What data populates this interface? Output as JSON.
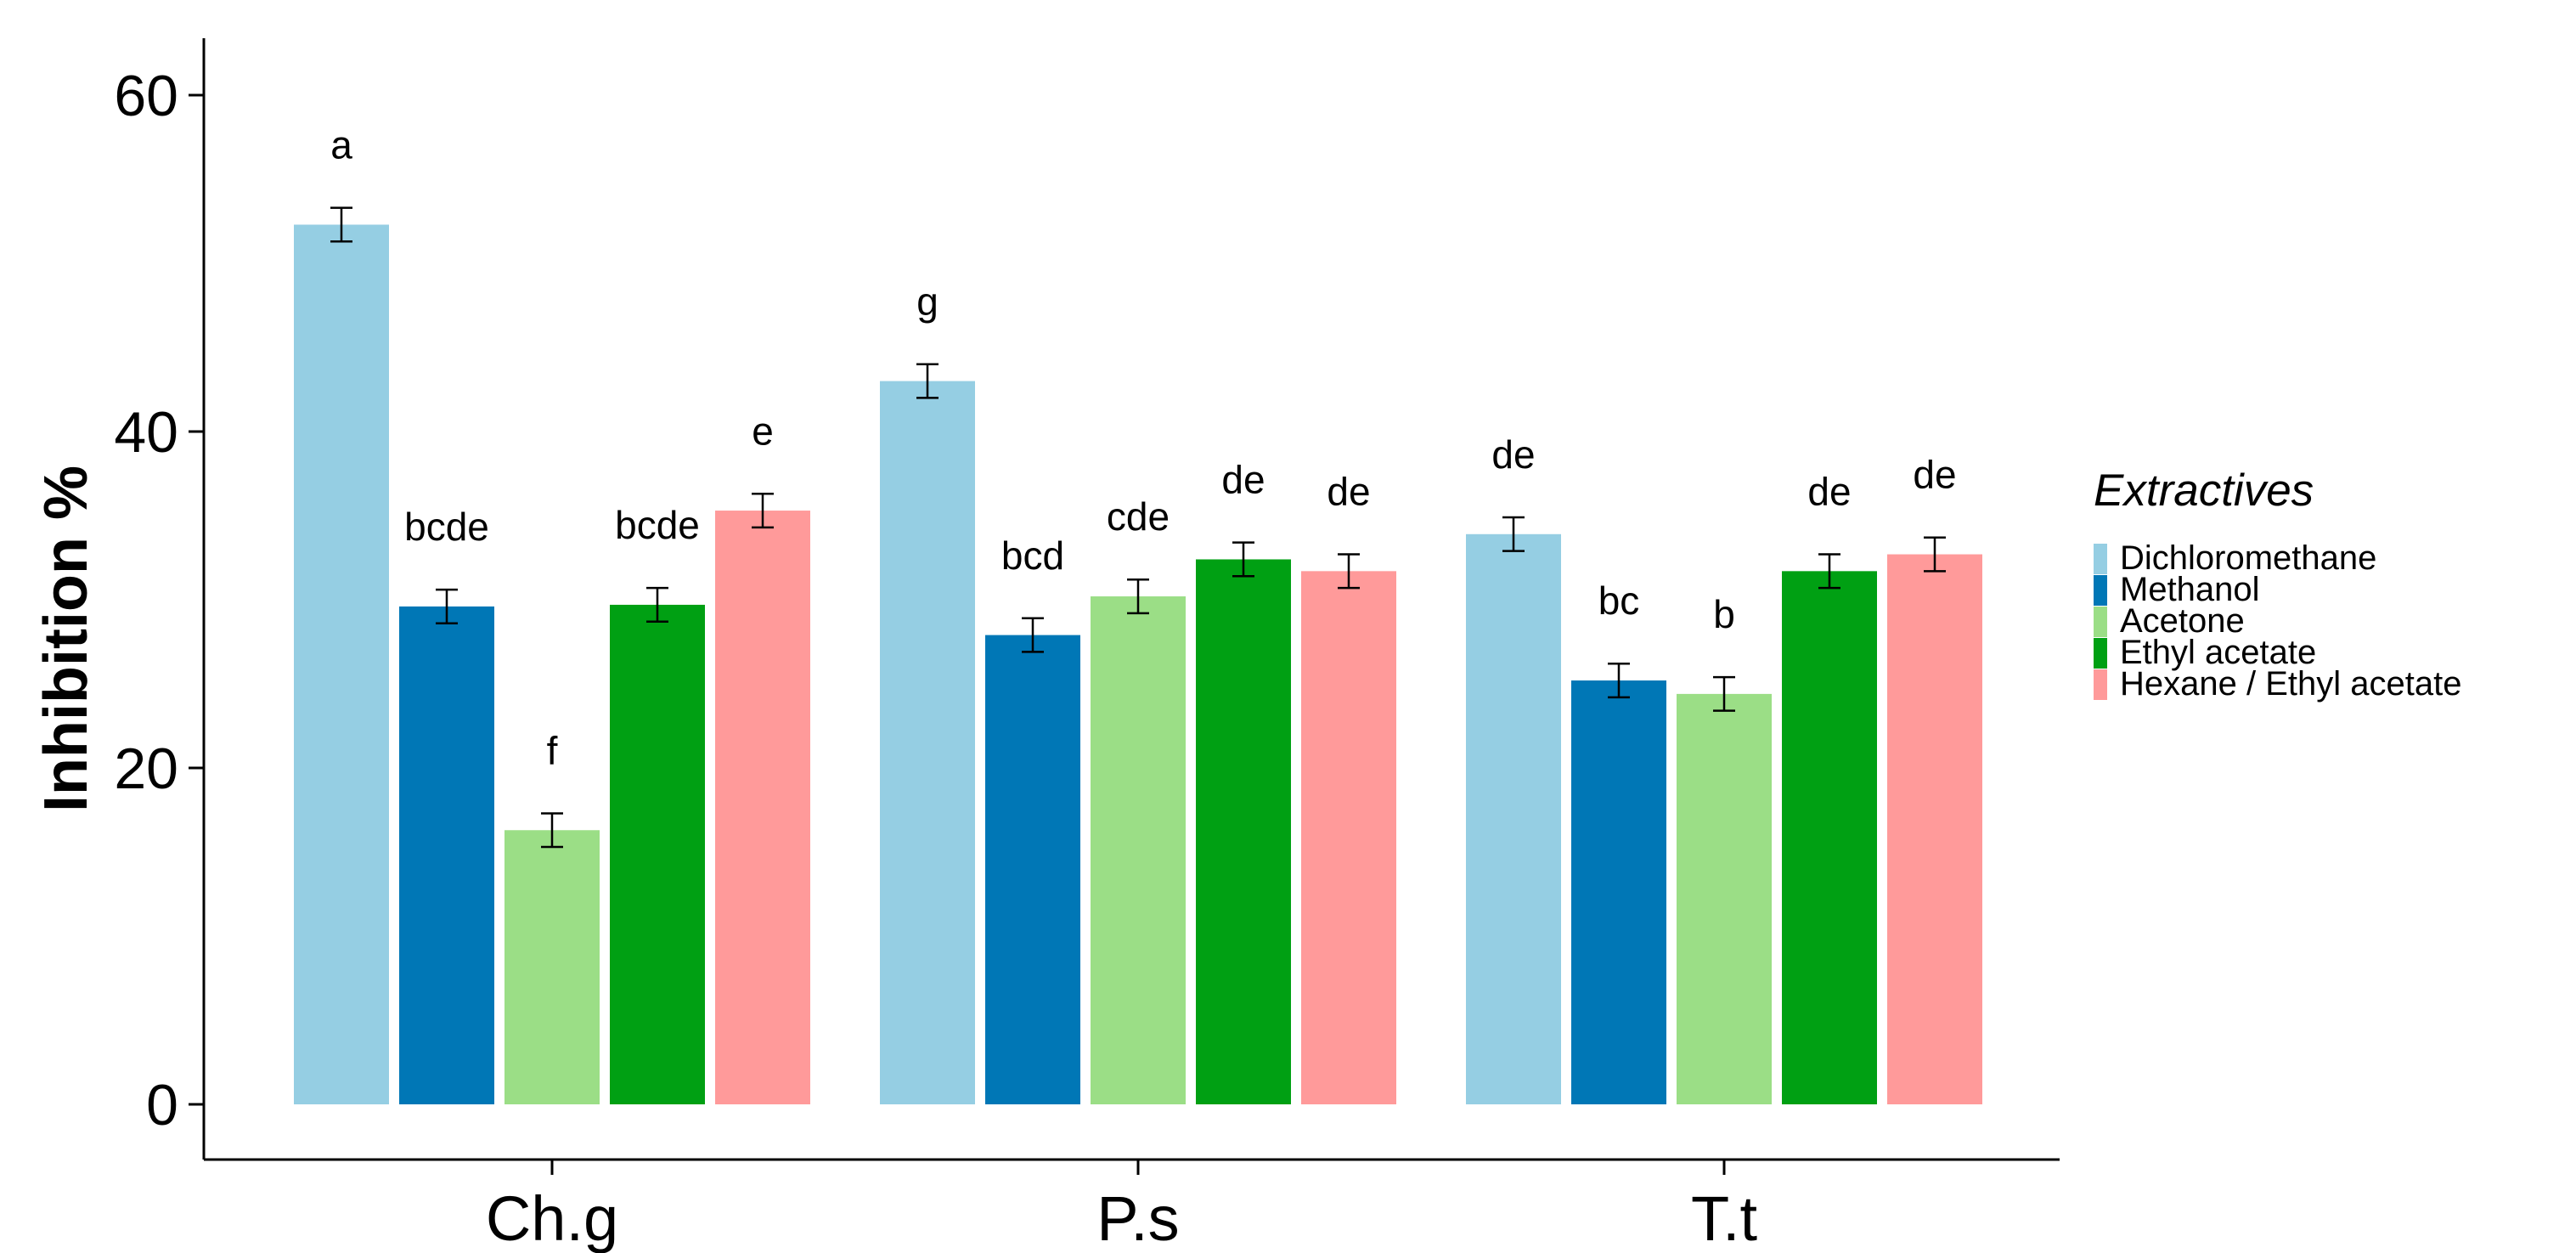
{
  "chart_data": {
    "type": "bar",
    "title": "",
    "xlabel": "",
    "ylabel": "Inhibition %",
    "ylim": [
      -3,
      63
    ],
    "yticks": [
      0,
      20,
      40,
      60
    ],
    "grid": false,
    "categories": [
      "Ch.g",
      "P.s",
      "T.t"
    ],
    "legend": {
      "title": "Extractives",
      "position": "right"
    },
    "series": [
      {
        "name": "Dichloromethane",
        "color": "#95CEE3",
        "values": [
          52.3,
          43.0,
          33.9
        ],
        "errors": [
          1.0,
          1.0,
          1.0
        ],
        "labels": [
          "a",
          "g",
          "de"
        ]
      },
      {
        "name": "Methanol",
        "color": "#0077B6",
        "values": [
          29.6,
          27.9,
          25.2
        ],
        "errors": [
          1.0,
          1.0,
          1.0
        ],
        "labels": [
          "bcde",
          "bcd",
          "bc"
        ]
      },
      {
        "name": "Acetone",
        "color": "#9BDE86",
        "values": [
          16.3,
          30.2,
          24.4
        ],
        "errors": [
          1.0,
          1.0,
          1.0
        ],
        "labels": [
          "f",
          "cde",
          "b"
        ]
      },
      {
        "name": "Ethyl acetate",
        "color": "#00A013",
        "values": [
          29.7,
          32.4,
          31.7
        ],
        "errors": [
          1.0,
          1.0,
          1.0
        ],
        "labels": [
          "bcde",
          "de",
          "de"
        ]
      },
      {
        "name": "Hexane / Ethyl acetate",
        "color": "#FF9A9A",
        "values": [
          35.3,
          31.7,
          32.7
        ],
        "errors": [
          1.0,
          1.0,
          1.0
        ],
        "labels": [
          "e",
          "de",
          "de"
        ]
      }
    ]
  }
}
